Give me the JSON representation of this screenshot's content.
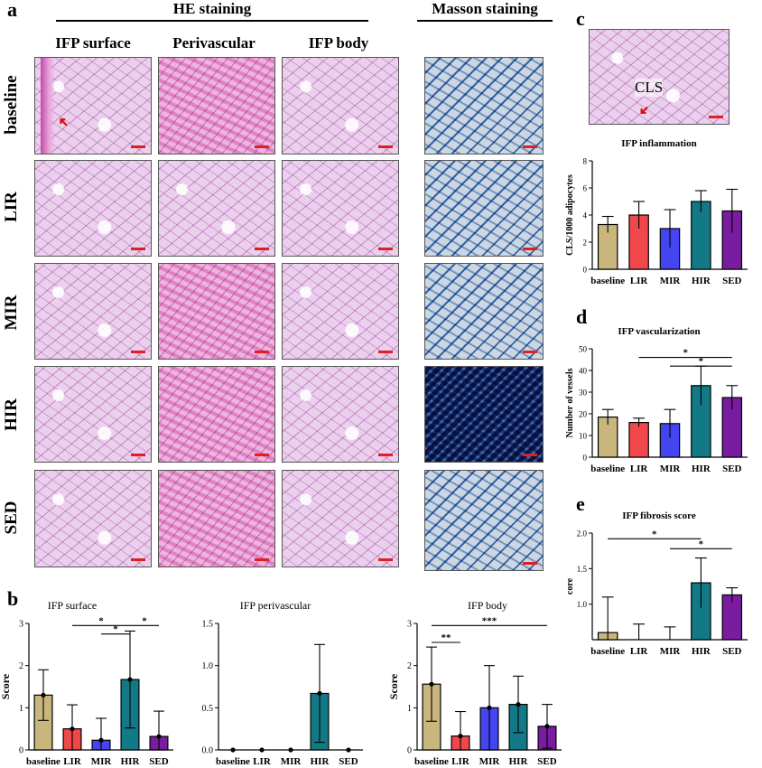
{
  "panels": {
    "a": "a",
    "b": "b",
    "c": "c",
    "d": "d",
    "e": "e"
  },
  "sections": {
    "he": "HE staining",
    "masson": "Masson  staining"
  },
  "columns": [
    "IFP surface",
    "Perivascular",
    "IFP body"
  ],
  "rows": [
    "baseline",
    "LIR",
    "MIR",
    "HIR",
    "SED"
  ],
  "cls_label": "CLS",
  "colors": {
    "baseline": "#c8b67c",
    "LIR": "#f0474a",
    "MIR": "#4444f0",
    "HIR": "#127a86",
    "SED": "#7a1ca0",
    "stroke": "#000000"
  },
  "chart_data": [
    {
      "id": "b1",
      "type": "bar",
      "title": "IFP surface",
      "ylabel": "Score",
      "categories": [
        "baseline",
        "LIR",
        "MIR",
        "HIR",
        "SED"
      ],
      "values": [
        1.3,
        0.5,
        0.23,
        1.67,
        0.32
      ],
      "errors": [
        0.6,
        0.57,
        0.52,
        1.15,
        0.6
      ],
      "ylim": [
        0,
        3
      ],
      "yticks": [
        "0",
        "1",
        "2",
        "3"
      ],
      "significance": [
        {
          "from": "LIR",
          "to": "HIR",
          "label": "*",
          "level": 2.95
        },
        {
          "from": "MIR",
          "to": "HIR",
          "label": "*",
          "level": 2.75
        },
        {
          "from": "HIR",
          "to": "SED",
          "label": "*",
          "level": 2.95
        }
      ]
    },
    {
      "id": "b2",
      "type": "bar",
      "title": "IFP perivascular",
      "ylabel": "",
      "categories": [
        "baseline",
        "LIR",
        "MIR",
        "HIR",
        "SED"
      ],
      "values": [
        0,
        0,
        0,
        0.67,
        0
      ],
      "errors": [
        0,
        0,
        0,
        0.58,
        0
      ],
      "ylim": [
        0,
        1.5
      ],
      "yticks": [
        "0.0",
        "0.5",
        "1.0",
        "1.5"
      ],
      "significance": []
    },
    {
      "id": "b3",
      "type": "bar",
      "title": "IFP body",
      "ylabel": "Score",
      "categories": [
        "baseline",
        "LIR",
        "MIR",
        "HIR",
        "SED"
      ],
      "values": [
        1.56,
        0.33,
        1.0,
        1.08,
        0.56
      ],
      "errors": [
        0.88,
        0.58,
        1.0,
        0.67,
        0.52
      ],
      "ylim": [
        0,
        3
      ],
      "yticks": [
        "0",
        "1",
        "2",
        "3"
      ],
      "significance": [
        {
          "from": "baseline",
          "to": "LIR",
          "label": "**",
          "level": 2.55
        },
        {
          "from": "baseline",
          "to": "SED",
          "label": "***",
          "level": 2.95
        }
      ]
    },
    {
      "id": "c",
      "type": "bar",
      "title": "IFP inflammation",
      "ylabel": "CLS/1000 adipocytes",
      "categories": [
        "baseline",
        "LIR",
        "MIR",
        "HIR",
        "SED"
      ],
      "values": [
        3.3,
        4.0,
        3.0,
        5.0,
        4.3
      ],
      "errors": [
        0.6,
        1.0,
        1.4,
        0.8,
        1.6
      ],
      "ylim": [
        0,
        8
      ],
      "yticks": [
        "0",
        "2",
        "4",
        "6",
        "8"
      ],
      "significance": []
    },
    {
      "id": "d",
      "type": "bar",
      "title": "IFP vascularization",
      "ylabel": "Number of vessels",
      "categories": [
        "baseline",
        "LIR",
        "MIR",
        "HIR",
        "SED"
      ],
      "values": [
        18.5,
        16.0,
        15.5,
        33.0,
        27.5
      ],
      "errors": [
        3.5,
        2.0,
        6.5,
        9.0,
        5.5
      ],
      "ylim": [
        0,
        50
      ],
      "yticks": [
        "0",
        "10",
        "20",
        "30",
        "40",
        "50"
      ],
      "significance": [
        {
          "from": "LIR",
          "to": "SED",
          "label": "*",
          "level": 46
        },
        {
          "from": "MIR",
          "to": "SED",
          "label": "*",
          "level": 42
        }
      ]
    },
    {
      "id": "e",
      "type": "bar",
      "title": "IFP fibrosis score",
      "ylabel": "core",
      "categories": [
        "baseline",
        "LIR",
        "MIR",
        "HIR",
        "SED"
      ],
      "values": [
        0.6,
        0.4,
        0.4,
        1.3,
        1.13
      ],
      "errors": [
        0.5,
        0.32,
        0.28,
        0.35,
        0.1
      ],
      "ylim": [
        0.5,
        2.0
      ],
      "yticks": [
        "1.0",
        "1.5",
        "2.0"
      ],
      "significance": [
        {
          "from": "baseline",
          "to": "HIR",
          "label": "*",
          "level": 1.92
        },
        {
          "from": "MIR",
          "to": "SED",
          "label": "*",
          "level": 1.78
        }
      ]
    }
  ]
}
